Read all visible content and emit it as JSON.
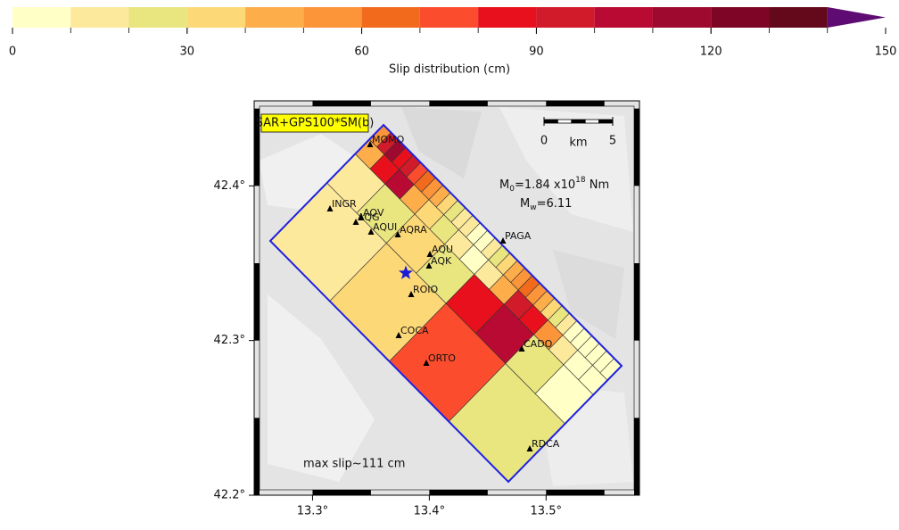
{
  "colorbar": {
    "label": "Slip distribution (cm)",
    "range": [
      0,
      150
    ],
    "ticks": [
      0,
      30,
      60,
      90,
      120,
      150
    ],
    "colors": [
      "#ffffc6",
      "#fde99c",
      "#e9e680",
      "#fdd877",
      "#fdae4b",
      "#fc9439",
      "#f26b1d",
      "#fb4d2e",
      "#e8101c",
      "#d11a2a",
      "#b80a32",
      "#9e0a2f",
      "#7e0525",
      "#64081c",
      "#5e0c74"
    ]
  },
  "map": {
    "xlim": [
      13.25,
      13.58
    ],
    "ylim": [
      42.2,
      42.455
    ],
    "xticks": [
      {
        "value": 13.3,
        "label": "13.3°"
      },
      {
        "value": 13.4,
        "label": "13.4°"
      },
      {
        "value": 13.5,
        "label": "13.5°"
      }
    ],
    "yticks": [
      {
        "value": 42.2,
        "label": "42.2°"
      },
      {
        "value": 42.3,
        "label": "42.3°"
      },
      {
        "value": 42.4,
        "label": "42.4°"
      }
    ],
    "model_label": "SAR+GPS100*SM(b)",
    "moment": {
      "m0_symbol": "M",
      "m0_sub": "0",
      "m0_value": "=1.84 x10",
      "m0_exp": "18",
      "m0_unit": " Nm",
      "mw_symbol": "M",
      "mw_sub": "w",
      "mw_value": "=6.11"
    },
    "max_slip": "max slip~111 cm",
    "scale_bar": {
      "ticks": [
        0,
        5
      ],
      "unit": "km"
    },
    "stations": [
      "MOMO",
      "INGR",
      "AQV",
      "AQG",
      "AQUI",
      "AQRA",
      "AQU",
      "AQK",
      "PAGA",
      "ROIO",
      "COCA",
      "ORTO",
      "CADO",
      "RDCA"
    ],
    "epicenter_color": "#1c1cd6",
    "fault": {
      "outline_color": "#1f22e0",
      "rows": [
        [
          55,
          95,
          111,
          85,
          95,
          75,
          65,
          55,
          45,
          35,
          25,
          15,
          15,
          5,
          5,
          15,
          25,
          35,
          45,
          55,
          65,
          55,
          45,
          35,
          25,
          15,
          5,
          5,
          5,
          5,
          5,
          5
        ],
        [
          45,
          85,
          105,
          45,
          35,
          25,
          15,
          5,
          15,
          45,
          95,
          85,
          55,
          15,
          5,
          5
        ],
        [
          15,
          25,
          35,
          25,
          85,
          105,
          25,
          5
        ],
        [
          15,
          35,
          75,
          25
        ]
      ]
    }
  }
}
